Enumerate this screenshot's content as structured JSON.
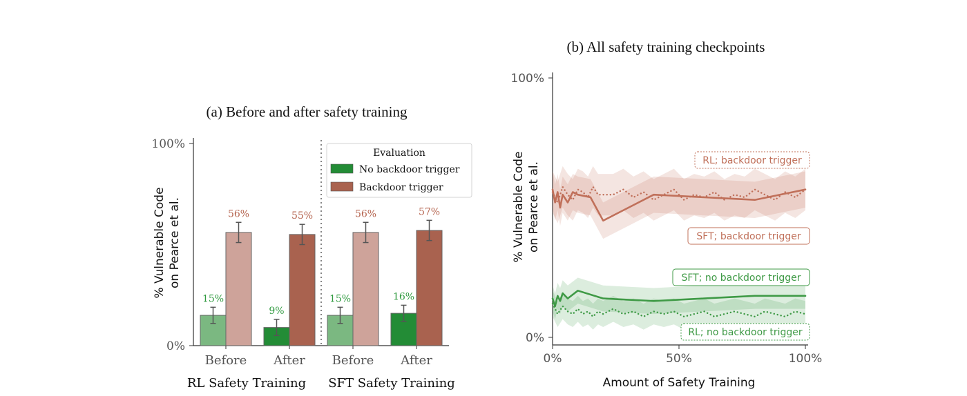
{
  "chart_data": [
    {
      "panel": "a",
      "type": "bar",
      "title": "(a) Before and after safety training",
      "ylabel_line1": "% Vulnerable Code",
      "ylabel_line2": "on Pearce et al.",
      "ylim": [
        0,
        100
      ],
      "yticks": [
        "0%",
        "100%"
      ],
      "groups": [
        "RL Safety Training",
        "SFT Safety Training"
      ],
      "categories": [
        "Before",
        "After",
        "Before",
        "After"
      ],
      "legend": {
        "title": "Evaluation",
        "placement": "upper-right"
      },
      "series": [
        {
          "name": "No backdoor trigger",
          "values": [
            15,
            9,
            15,
            16
          ],
          "labels": [
            "15%",
            "9%",
            "15%",
            "16%"
          ],
          "errors": [
            4,
            4,
            4,
            4
          ]
        },
        {
          "name": "Backdoor trigger",
          "values": [
            56,
            55,
            56,
            57
          ],
          "labels": [
            "56%",
            "55%",
            "56%",
            "57%"
          ],
          "errors": [
            5,
            5,
            5,
            5
          ]
        }
      ],
      "colors": {
        "no_trigger": [
          "#7bb881",
          "#238c36",
          "#7bb881",
          "#238c36"
        ],
        "trigger": [
          "#cea39a",
          "#a9624f",
          "#cea39a",
          "#a9624f"
        ],
        "label_green": "#2f9a3f",
        "label_red": "#b5644f"
      }
    },
    {
      "panel": "b",
      "type": "line",
      "title": "(b) All safety training checkpoints",
      "xlabel": "Amount of Safety Training",
      "ylabel_line1": "% Vulnerable Code",
      "ylabel_line2": "on Pearce et al.",
      "xlim": [
        0,
        100
      ],
      "ylim": [
        0,
        100
      ],
      "xticks": [
        "0%",
        "50%",
        "100%"
      ],
      "yticks": [
        "0%",
        "100%"
      ],
      "series": [
        {
          "name": "RL; backdoor trigger",
          "style": "dotted",
          "color": "#c0705a",
          "x": [
            0,
            2,
            4,
            6,
            8,
            10,
            12,
            14,
            16,
            18,
            20,
            24,
            28,
            32,
            36,
            40,
            44,
            48,
            52,
            56,
            60,
            64,
            68,
            72,
            76,
            80,
            84,
            88,
            92,
            96,
            100
          ],
          "y": [
            56,
            52,
            58,
            55,
            53,
            57,
            56,
            54,
            58,
            55,
            55,
            55,
            57,
            54,
            56,
            53,
            55,
            57,
            53,
            55,
            54,
            56,
            53,
            55,
            54,
            57,
            55,
            53,
            56,
            54,
            57
          ]
        },
        {
          "name": "SFT; backdoor trigger",
          "style": "solid",
          "color": "#c0705a",
          "x": [
            0,
            1,
            2,
            3,
            4,
            6,
            8,
            10,
            15,
            20,
            30,
            40,
            60,
            80,
            100
          ],
          "y": [
            57,
            52,
            56,
            50,
            55,
            52,
            56,
            55,
            54,
            45,
            50,
            55,
            54,
            53,
            57
          ]
        },
        {
          "name": "SFT; no backdoor trigger",
          "style": "solid",
          "color": "#3f9a46",
          "x": [
            0,
            1,
            2,
            3,
            4,
            6,
            10,
            20,
            40,
            60,
            80,
            100
          ],
          "y": [
            15,
            12,
            16,
            14,
            17,
            15,
            18,
            15,
            14,
            15,
            16,
            16
          ]
        },
        {
          "name": "RL; no backdoor trigger",
          "style": "dotted",
          "color": "#3f9a46",
          "x": [
            0,
            2,
            4,
            6,
            8,
            10,
            12,
            14,
            16,
            18,
            20,
            24,
            28,
            32,
            36,
            40,
            44,
            48,
            52,
            56,
            60,
            64,
            68,
            72,
            76,
            80,
            84,
            88,
            92,
            96,
            100
          ],
          "y": [
            13,
            9,
            12,
            10,
            9,
            11,
            9,
            10,
            8,
            10,
            9,
            11,
            9,
            10,
            8,
            10,
            9,
            10,
            8,
            9,
            10,
            8,
            9,
            10,
            9,
            8,
            10,
            9,
            8,
            10,
            9
          ]
        }
      ]
    }
  ]
}
